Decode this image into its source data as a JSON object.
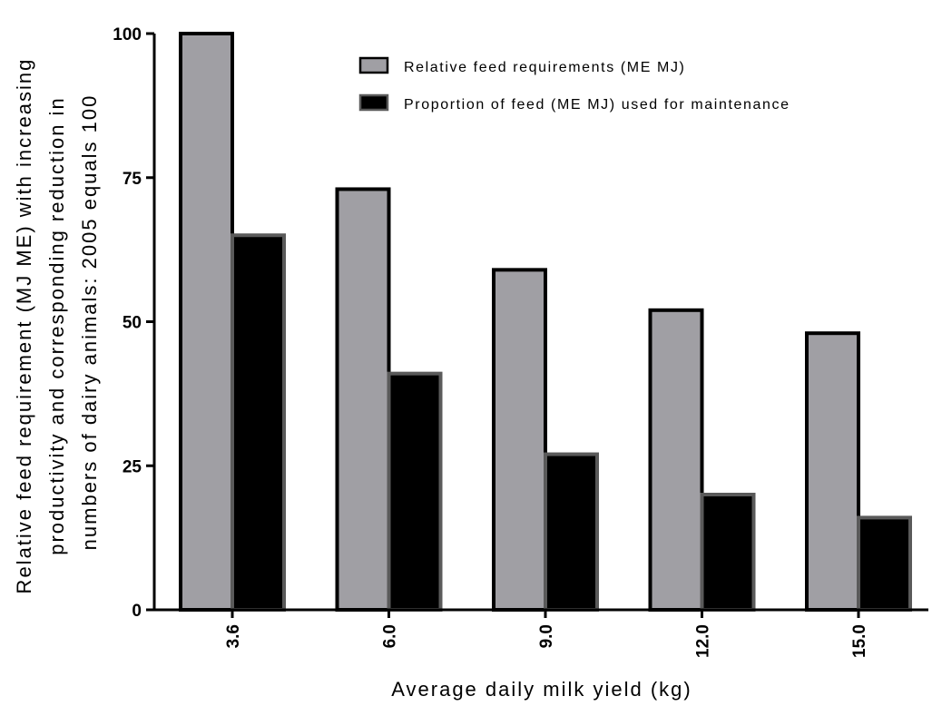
{
  "chart_data": {
    "type": "bar",
    "categories": [
      "3.6",
      "6.0",
      "9.0",
      "12.0",
      "15.0"
    ],
    "series": [
      {
        "name": "Relative feed requirements (ME MJ)",
        "values": [
          100,
          73,
          59,
          52,
          48
        ],
        "color": "#a09fa4"
      },
      {
        "name": "Proportion of feed (ME MJ) used for maintenance",
        "values": [
          65,
          41,
          27,
          20,
          16
        ],
        "color": "#000000"
      }
    ],
    "xlabel": "Average daily milk yield (kg)",
    "ylabel_lines": [
      "Relative feed requirement (MJ ME) with increasing",
      "productivity and corresponding reduction in",
      "numbers of dairy animals: 2005 equals 100"
    ],
    "ylim": [
      0,
      100
    ],
    "yticks": [
      0,
      25,
      50,
      75,
      100
    ],
    "legend_position": "top-right",
    "grid": false
  }
}
